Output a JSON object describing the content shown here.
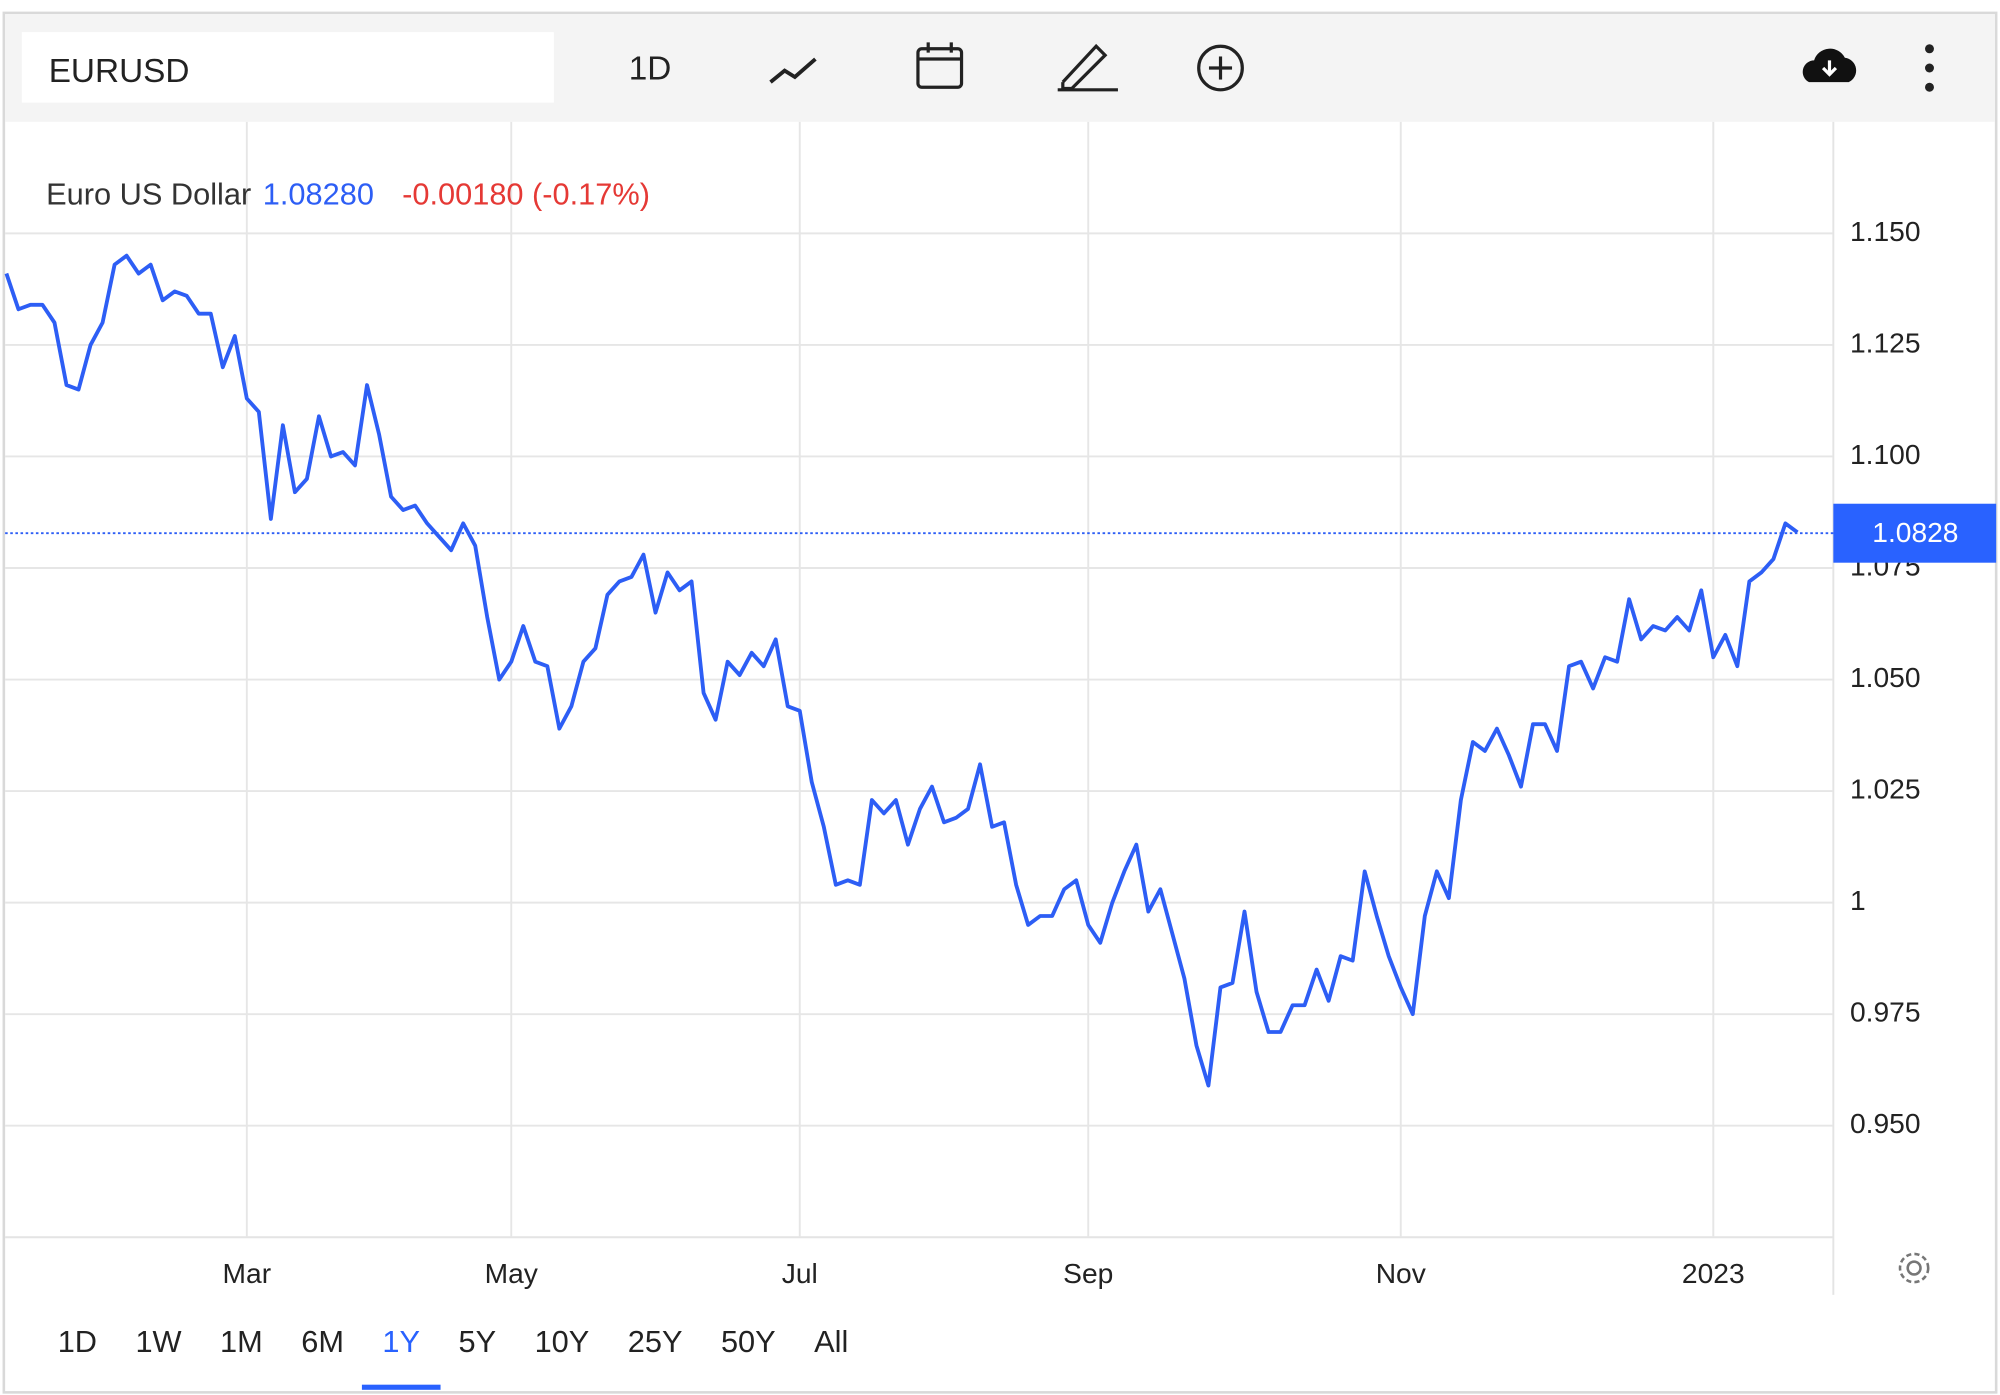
{
  "toolbar": {
    "symbol": "EURUSD",
    "interval": "1D"
  },
  "quote": {
    "name": "Euro US Dollar",
    "price": "1.08280",
    "change": "-0.00180 (-0.17%)"
  },
  "range_selector": {
    "options": [
      "1D",
      "1W",
      "1M",
      "6M",
      "1Y",
      "5Y",
      "10Y",
      "25Y",
      "50Y",
      "All"
    ],
    "selected": 4
  },
  "chart_data": {
    "type": "line",
    "color": "#2d5ef5",
    "categories": [
      null,
      null,
      null,
      null,
      null,
      null,
      null,
      null,
      null,
      null,
      null,
      null,
      null,
      null,
      null,
      null,
      null,
      null,
      null,
      null,
      "Mar",
      null,
      null,
      null,
      null,
      null,
      null,
      null,
      null,
      null,
      null,
      null,
      null,
      null,
      null,
      null,
      null,
      null,
      null,
      null,
      null,
      null,
      "May",
      null,
      null,
      null,
      null,
      null,
      null,
      null,
      null,
      null,
      null,
      null,
      null,
      null,
      null,
      null,
      null,
      null,
      null,
      null,
      null,
      null,
      null,
      null,
      "Jul",
      null,
      null,
      null,
      null,
      null,
      null,
      null,
      null,
      null,
      null,
      null,
      null,
      null,
      null,
      null,
      null,
      null,
      null,
      null,
      null,
      null,
      null,
      null,
      "Sep",
      null,
      null,
      null,
      null,
      null,
      null,
      null,
      null,
      null,
      null,
      null,
      null,
      null,
      null,
      null,
      null,
      null,
      null,
      null,
      null,
      null,
      null,
      null,
      null,
      null,
      "Nov",
      null,
      null,
      null,
      null,
      null,
      null,
      null,
      null,
      null,
      null,
      null,
      null,
      null,
      null,
      null,
      null,
      null,
      null,
      null,
      null,
      null,
      null,
      null,
      null,
      null,
      "2023",
      null,
      null,
      null,
      null,
      null,
      null,
      null
    ],
    "values": [
      1.141,
      1.133,
      1.134,
      1.134,
      1.13,
      1.116,
      1.115,
      1.125,
      1.13,
      1.143,
      1.145,
      1.141,
      1.143,
      1.135,
      1.137,
      1.136,
      1.132,
      1.132,
      1.12,
      1.127,
      1.113,
      1.11,
      1.086,
      1.107,
      1.092,
      1.095,
      1.109,
      1.1,
      1.101,
      1.098,
      1.116,
      1.105,
      1.091,
      1.088,
      1.089,
      1.085,
      1.082,
      1.079,
      1.085,
      1.08,
      1.064,
      1.05,
      1.054,
      1.062,
      1.054,
      1.053,
      1.039,
      1.044,
      1.054,
      1.057,
      1.069,
      1.072,
      1.073,
      1.078,
      1.065,
      1.074,
      1.07,
      1.072,
      1.047,
      1.041,
      1.054,
      1.051,
      1.056,
      1.053,
      1.059,
      1.044,
      1.043,
      1.027,
      1.017,
      1.004,
      1.005,
      1.004,
      1.023,
      1.02,
      1.023,
      1.013,
      1.021,
      1.026,
      1.018,
      1.019,
      1.021,
      1.031,
      1.017,
      1.018,
      1.004,
      0.995,
      0.997,
      0.997,
      1.003,
      1.005,
      0.995,
      0.991,
      1.0,
      1.007,
      1.013,
      0.998,
      1.003,
      0.993,
      0.983,
      0.968,
      0.959,
      0.981,
      0.982,
      0.998,
      0.98,
      0.971,
      0.971,
      0.977,
      0.977,
      0.985,
      0.978,
      0.988,
      0.987,
      1.007,
      0.997,
      0.988,
      0.981,
      0.975,
      0.997,
      1.007,
      1.001,
      1.023,
      1.036,
      1.034,
      1.039,
      1.033,
      1.026,
      1.04,
      1.04,
      1.034,
      1.053,
      1.054,
      1.048,
      1.055,
      1.054,
      1.068,
      1.059,
      1.062,
      1.061,
      1.064,
      1.061,
      1.07,
      1.055,
      1.06,
      1.053,
      1.072,
      1.074,
      1.077,
      1.085,
      1.083
    ],
    "current": 1.0828,
    "ylim": [
      0.925,
      1.175
    ],
    "yticks": [
      {
        "value": 0.95,
        "label": "0.950"
      },
      0.975,
      1,
      1.025,
      {
        "value": 1.05,
        "label": "1.050"
      },
      1.075,
      {
        "value": 1.1,
        "label": "1.100"
      },
      1.125,
      {
        "value": 1.15,
        "label": "1.150"
      }
    ],
    "grid": true
  }
}
